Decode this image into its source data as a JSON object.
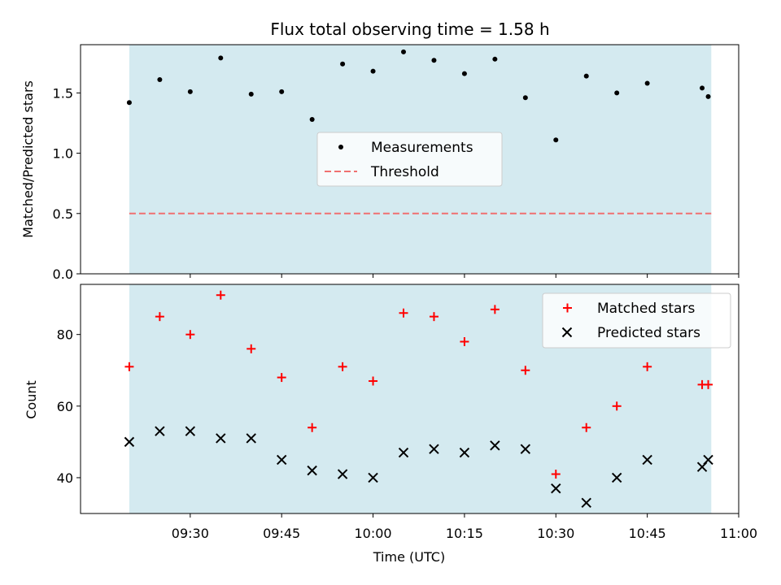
{
  "chart_data": {
    "title": "Flux total observing time = 1.58 h",
    "xlabel": "Time (UTC)",
    "x_ticks": [
      "09:30",
      "09:45",
      "10:00",
      "10:15",
      "10:30",
      "10:45",
      "11:00"
    ],
    "shaded_color": "#d4eaf0",
    "top_panel": {
      "type": "scatter",
      "ylabel": "Matched/Predicted stars",
      "ylim": [
        0,
        1.9
      ],
      "y_ticks": [
        "0.0",
        "0.5",
        "1.0",
        "1.5"
      ],
      "legend_position": "center",
      "threshold": {
        "name": "Threshold",
        "value": 0.5,
        "color": "#f07070"
      },
      "series": [
        {
          "name": "Measurements",
          "color": "#000000",
          "points": [
            {
              "x": "09:20",
              "y": 1.42
            },
            {
              "x": "09:25",
              "y": 1.61
            },
            {
              "x": "09:30",
              "y": 1.51
            },
            {
              "x": "09:35",
              "y": 1.79
            },
            {
              "x": "09:40",
              "y": 1.49
            },
            {
              "x": "09:45",
              "y": 1.51
            },
            {
              "x": "09:50",
              "y": 1.28
            },
            {
              "x": "09:55",
              "y": 1.74
            },
            {
              "x": "10:00",
              "y": 1.68
            },
            {
              "x": "10:05",
              "y": 1.84
            },
            {
              "x": "10:10",
              "y": 1.77
            },
            {
              "x": "10:15",
              "y": 1.66
            },
            {
              "x": "10:20",
              "y": 1.78
            },
            {
              "x": "10:25",
              "y": 1.46
            },
            {
              "x": "10:30",
              "y": 1.11
            },
            {
              "x": "10:35",
              "y": 1.64
            },
            {
              "x": "10:40",
              "y": 1.5
            },
            {
              "x": "10:45",
              "y": 1.58
            },
            {
              "x": "10:54",
              "y": 1.54
            },
            {
              "x": "10:55",
              "y": 1.47
            }
          ]
        }
      ]
    },
    "bottom_panel": {
      "type": "scatter",
      "ylabel": "Count",
      "ylim": [
        30,
        94
      ],
      "y_ticks": [
        "40",
        "60",
        "80"
      ],
      "legend_position": "top-right",
      "series": [
        {
          "name": "Matched stars",
          "marker": "plus",
          "color": "#ff0000",
          "points": [
            {
              "x": "09:20",
              "y": 71
            },
            {
              "x": "09:25",
              "y": 85
            },
            {
              "x": "09:30",
              "y": 80
            },
            {
              "x": "09:35",
              "y": 91
            },
            {
              "x": "09:40",
              "y": 76
            },
            {
              "x": "09:45",
              "y": 68
            },
            {
              "x": "09:50",
              "y": 54
            },
            {
              "x": "09:55",
              "y": 71
            },
            {
              "x": "10:00",
              "y": 67
            },
            {
              "x": "10:05",
              "y": 86
            },
            {
              "x": "10:10",
              "y": 85
            },
            {
              "x": "10:15",
              "y": 78
            },
            {
              "x": "10:20",
              "y": 87
            },
            {
              "x": "10:25",
              "y": 70
            },
            {
              "x": "10:30",
              "y": 41
            },
            {
              "x": "10:35",
              "y": 54
            },
            {
              "x": "10:40",
              "y": 60
            },
            {
              "x": "10:45",
              "y": 71
            },
            {
              "x": "10:54",
              "y": 66
            },
            {
              "x": "10:55",
              "y": 66
            }
          ]
        },
        {
          "name": "Predicted stars",
          "marker": "x",
          "color": "#000000",
          "points": [
            {
              "x": "09:20",
              "y": 50
            },
            {
              "x": "09:25",
              "y": 53
            },
            {
              "x": "09:30",
              "y": 53
            },
            {
              "x": "09:35",
              "y": 51
            },
            {
              "x": "09:40",
              "y": 51
            },
            {
              "x": "09:45",
              "y": 45
            },
            {
              "x": "09:50",
              "y": 42
            },
            {
              "x": "09:55",
              "y": 41
            },
            {
              "x": "10:00",
              "y": 40
            },
            {
              "x": "10:05",
              "y": 47
            },
            {
              "x": "10:10",
              "y": 48
            },
            {
              "x": "10:15",
              "y": 47
            },
            {
              "x": "10:20",
              "y": 49
            },
            {
              "x": "10:25",
              "y": 48
            },
            {
              "x": "10:30",
              "y": 37
            },
            {
              "x": "10:35",
              "y": 33
            },
            {
              "x": "10:40",
              "y": 40
            },
            {
              "x": "10:45",
              "y": 45
            },
            {
              "x": "10:54",
              "y": 43
            },
            {
              "x": "10:55",
              "y": 45
            }
          ]
        }
      ]
    }
  }
}
